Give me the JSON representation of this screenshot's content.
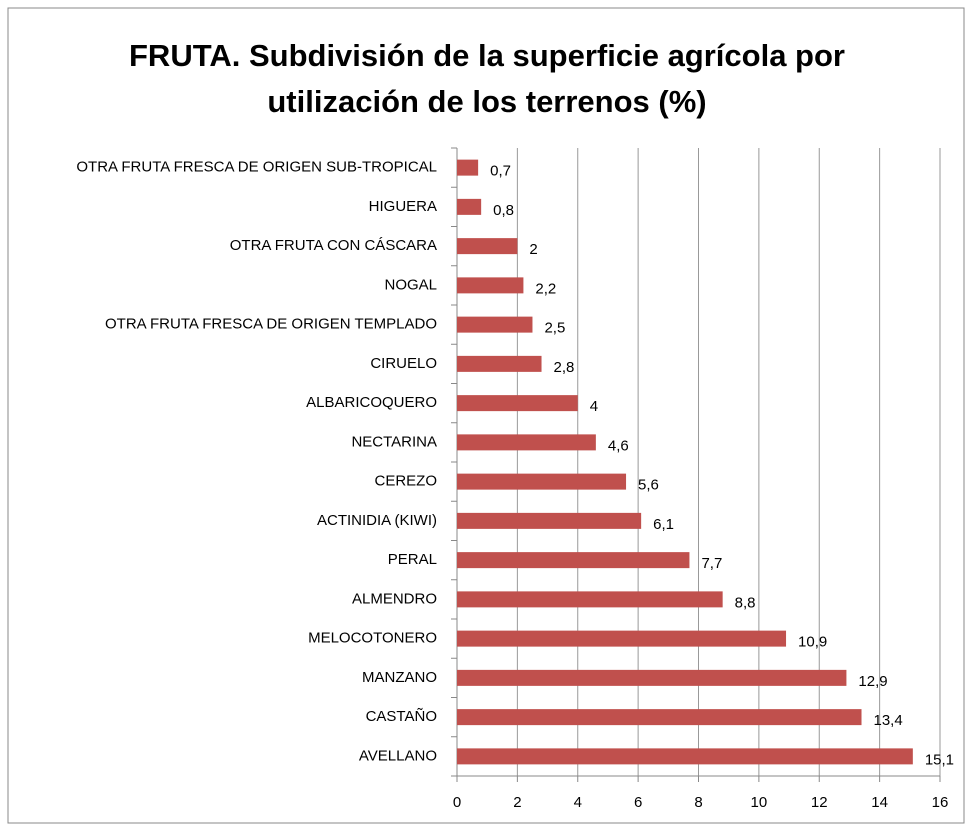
{
  "chart_data": {
    "type": "bar",
    "orientation": "horizontal",
    "title": [
      "FRUTA. Subdivisión de la superficie agrícola por",
      "utilización de los terrenos (%)"
    ],
    "categories": [
      "OTRA FRUTA FRESCA DE ORIGEN SUB-TROPICAL",
      "HIGUERA",
      "OTRA FRUTA CON CÁSCARA",
      "NOGAL",
      "OTRA FRUTA FRESCA DE ORIGEN TEMPLADO",
      "CIRUELO",
      "ALBARICOQUERO",
      "NECTARINA",
      "CEREZO",
      "ACTINIDIA (KIWI)",
      "PERAL",
      "ALMENDRO",
      "MELOCOTONERO",
      "MANZANO",
      "CASTAÑO",
      "AVELLANO"
    ],
    "values": [
      0.7,
      0.8,
      2,
      2.2,
      2.5,
      2.8,
      4,
      4.6,
      5.6,
      6.1,
      7.7,
      8.8,
      10.9,
      12.9,
      13.4,
      15.1
    ],
    "value_labels": [
      "0,7",
      "0,8",
      "2",
      "2,2",
      "2,5",
      "2,8",
      "4",
      "4,6",
      "5,6",
      "6,1",
      "7,7",
      "8,8",
      "10,9",
      "12,9",
      "13,4",
      "15,1"
    ],
    "color": "#c0504d",
    "xlim": [
      0,
      16
    ],
    "xticks": [
      0,
      2,
      4,
      6,
      8,
      10,
      12,
      14,
      16
    ],
    "grid": true
  }
}
